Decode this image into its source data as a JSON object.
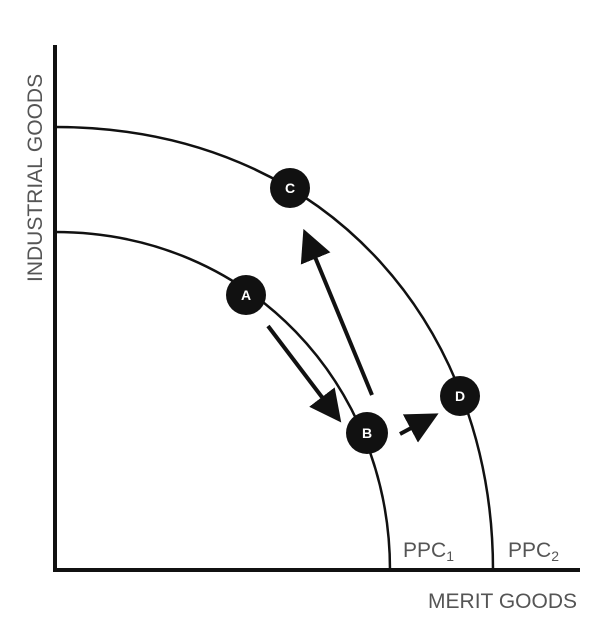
{
  "axes": {
    "x_label": "MERIT GOODS",
    "y_label": "INDUSTRIAL GOODS"
  },
  "curves": [
    {
      "label": "PPC",
      "subscript": "1"
    },
    {
      "label": "PPC",
      "subscript": "2"
    }
  ],
  "points": {
    "a": "A",
    "b": "B",
    "c": "C",
    "d": "D"
  },
  "arrows": [
    "A to B",
    "B to C",
    "B to D"
  ],
  "colors": {
    "line": "#111111",
    "point": "#111111",
    "text": "#555555"
  }
}
